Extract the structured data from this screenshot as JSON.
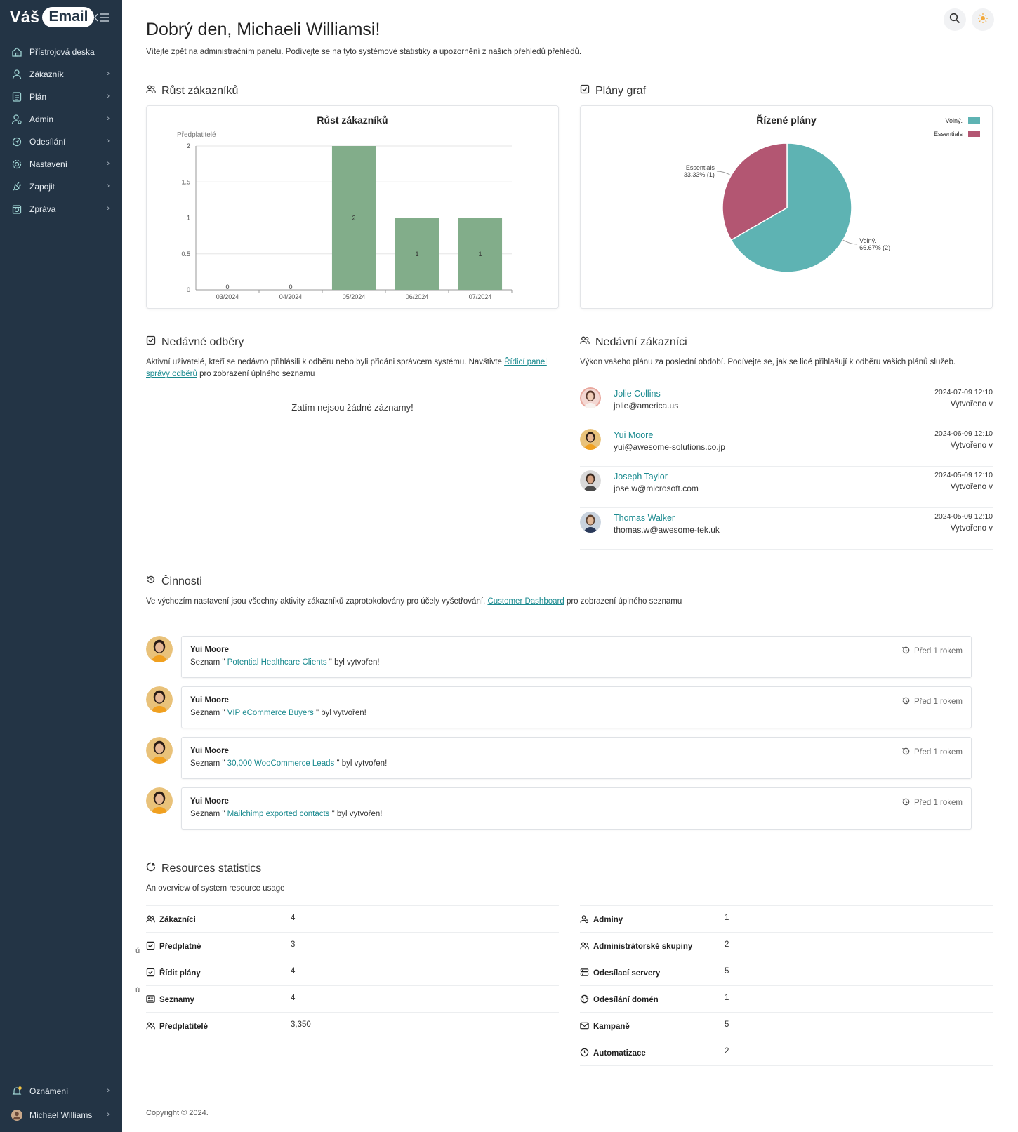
{
  "brand": {
    "part1": "Váš",
    "part2": "Email"
  },
  "nav": [
    {
      "label": "Přístrojová deska",
      "icon": "home-icon",
      "name": "sidebar-item-dashboard",
      "chevron": false
    },
    {
      "label": "Zákazník",
      "icon": "user-icon",
      "name": "sidebar-item-customer",
      "chevron": true
    },
    {
      "label": "Plán",
      "icon": "plan-icon",
      "name": "sidebar-item-plan",
      "chevron": true
    },
    {
      "label": "Admin",
      "icon": "admin-icon",
      "name": "sidebar-item-admin",
      "chevron": true
    },
    {
      "label": "Odesílání",
      "icon": "sending-icon",
      "name": "sidebar-item-sending",
      "chevron": true
    },
    {
      "label": "Nastavení",
      "icon": "gear-icon",
      "name": "sidebar-item-settings",
      "chevron": true
    },
    {
      "label": "Zapojit",
      "icon": "plug-icon",
      "name": "sidebar-item-plugins",
      "chevron": true
    },
    {
      "label": "Zpráva",
      "icon": "report-icon",
      "name": "sidebar-item-report",
      "chevron": true
    }
  ],
  "nav_bottom": {
    "notifications": "Oznámení",
    "user": "Michael Williams"
  },
  "header": {
    "greeting": "Dobrý den, Michaeli Williamsi!",
    "subtitle": "Vítejte zpět na administračním panelu. Podívejte se na tyto systémové statistiky a upozornění z našich přehledů přehledů."
  },
  "growth": {
    "section_title": "Růst zákazníků"
  },
  "plans": {
    "section_title": "Plány graf"
  },
  "chart_data": [
    {
      "type": "bar",
      "title": "Růst zákazníků",
      "ylabel": "Předplatitelé",
      "xlabel": "",
      "categories": [
        "03/2024",
        "04/2024",
        "05/2024",
        "06/2024",
        "07/2024"
      ],
      "values": [
        0,
        0,
        2,
        1,
        1
      ],
      "data_labels": [
        "0",
        "0",
        "2",
        "1",
        "1"
      ],
      "yticks": [
        "0",
        "0.5",
        "1",
        "1.5",
        "2"
      ],
      "ylim": [
        0,
        2
      ],
      "grid": true,
      "color": "#82ad8a"
    },
    {
      "type": "pie",
      "title": "Řízené plány",
      "slices": [
        {
          "name": "Volný",
          "legend": "Volný.",
          "value": 2,
          "percent": 66.67,
          "label_l1": "Volný.",
          "label_l2": "66.67% (2)",
          "color": "#5eb3b3"
        },
        {
          "name": "Essentials",
          "legend": "Essentials",
          "value": 1,
          "percent": 33.33,
          "label_l1": "Essentials",
          "label_l2": "33.33% (1)",
          "color": "#b35672"
        }
      ],
      "legend_position": "top-right"
    }
  ],
  "subscriptions": {
    "title": "Nedávné odběry",
    "desc_pre": "Aktivní uživatelé, kteří se nedávno přihlásili k odběru nebo byli přidáni správcem systému. Navštivte ",
    "desc_link": "Řídicí panel správy odběrů",
    "desc_post": " pro zobrazení úplného seznamu",
    "empty": "Zatím nejsou žádné záznamy!"
  },
  "customers": {
    "title": "Nedávní zákazníci",
    "desc": "Výkon vašeho plánu za poslední období. Podívejte se, jak se lidé přihlašují k odběru vašich plánů služeb.",
    "created_label": "Vytvořeno v",
    "items": [
      {
        "name": "Jolie Collins",
        "email": "jolie@america.us",
        "date": "2024-07-09 12:10"
      },
      {
        "name": "Yui Moore",
        "email": "yui@awesome-solutions.co.jp",
        "date": "2024-06-09 12:10"
      },
      {
        "name": "Joseph Taylor",
        "email": "jose.w@microsoft.com",
        "date": "2024-05-09 12:10"
      },
      {
        "name": "Thomas Walker",
        "email": "thomas.w@awesome-tek.uk",
        "date": "2024-05-09 12:10"
      }
    ]
  },
  "activities": {
    "title": "Činnosti",
    "desc_pre": "Ve výchozím nastavení jsou všechny aktivity zákazníků zaprotokolovány pro účely vyšetřování. ",
    "desc_link": "Customer Dashboard",
    "desc_post": " pro zobrazení úplného seznamu",
    "items": [
      {
        "user": "Yui Moore",
        "pre": "Seznam \" ",
        "link": "Potential Healthcare Clients",
        "post": " \" byl vytvořen!",
        "time": "Před 1 rokem"
      },
      {
        "user": "Yui Moore",
        "pre": "Seznam \" ",
        "link": "VIP eCommerce Buyers",
        "post": " \" byl vytvořen!",
        "time": "Před 1 rokem"
      },
      {
        "user": "Yui Moore",
        "pre": "Seznam \" ",
        "link": "30,000 WooCommerce Leads",
        "post": " \" byl vytvořen!",
        "time": "Před 1 rokem"
      },
      {
        "user": "Yui Moore",
        "pre": "Seznam \" ",
        "link": "Mailchimp exported contacts",
        "post": " \" byl vytvořen!",
        "time": "Před 1 rokem"
      }
    ]
  },
  "resources": {
    "title": "Resources statistics",
    "desc": "An overview of system resource usage",
    "left": [
      {
        "label": "Zákazníci",
        "value": "4",
        "icon": "users-icon"
      },
      {
        "label": "Předplatné",
        "value": "3",
        "icon": "checkbox-icon"
      },
      {
        "label": "Řídit plány",
        "value": "4",
        "icon": "checkbox-icon"
      },
      {
        "label": "Seznamy",
        "value": "4",
        "icon": "list-card-icon"
      },
      {
        "label": "Předplatitelé",
        "value": "3,350",
        "icon": "users-icon"
      }
    ],
    "right": [
      {
        "label": "Adminy",
        "value": "1",
        "icon": "admin-icon"
      },
      {
        "label": "Administrátorské skupiny",
        "value": "2",
        "icon": "users-icon"
      },
      {
        "label": "Odesílací servery",
        "value": "5",
        "icon": "server-icon"
      },
      {
        "label": "Odesílání domén",
        "value": "1",
        "icon": "globe-icon"
      },
      {
        "label": "Kampaně",
        "value": "5",
        "icon": "mail-icon"
      },
      {
        "label": "Automatizace",
        "value": "2",
        "icon": "clock-icon"
      }
    ],
    "stray_marks": [
      "ú",
      "ú"
    ]
  },
  "footer": "Copyright © 2024."
}
